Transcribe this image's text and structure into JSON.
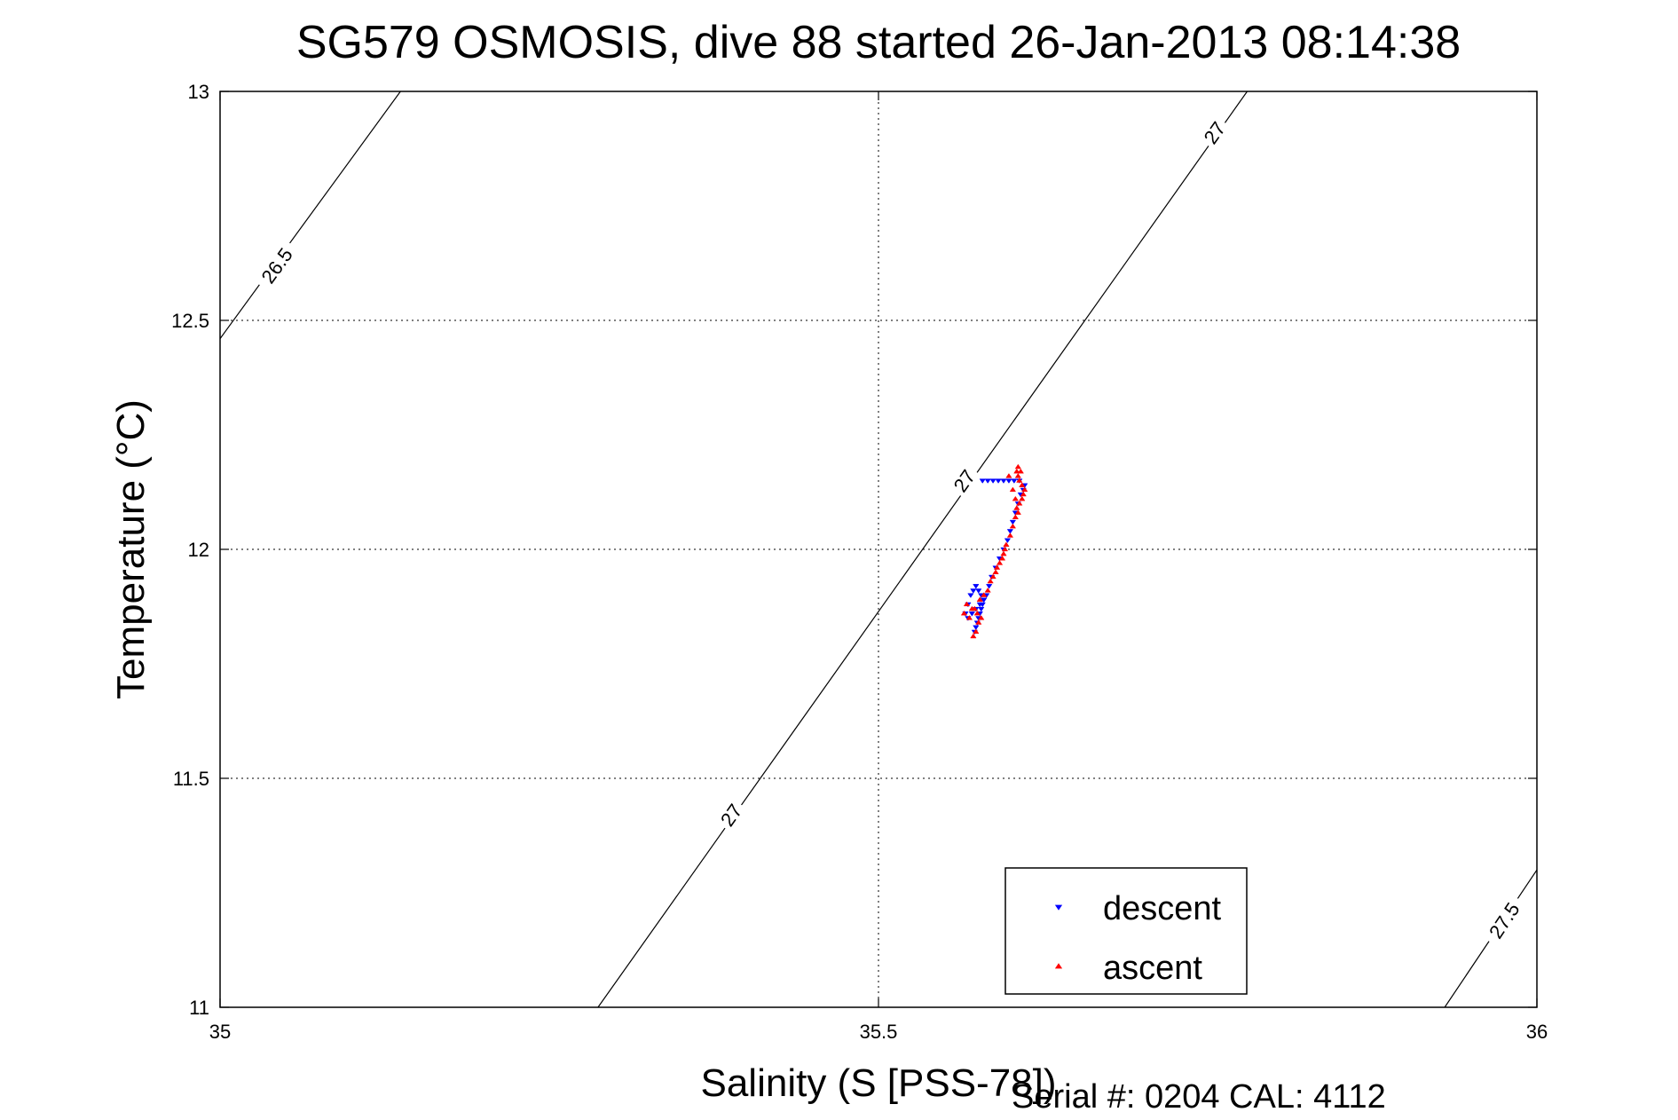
{
  "chart_data": {
    "type": "scatter",
    "title": "SG579 OSMOSIS, dive 88 started 26-Jan-2013 08:14:38",
    "xlabel": "Salinity (S [PSS-78])",
    "ylabel": "Temperature (°C)",
    "xlim": [
      35,
      36
    ],
    "ylim": [
      11,
      13
    ],
    "xticks": [
      35,
      35.5,
      36
    ],
    "xtick_labels": [
      "35",
      "35.5",
      "36"
    ],
    "yticks": [
      11,
      11.5,
      12,
      12.5,
      13
    ],
    "ytick_labels": [
      "11",
      "11.5",
      "12",
      "12.5",
      "13"
    ],
    "grid": true,
    "legend_position": "bottom-right",
    "footnote": "Serial #: 0204  CAL: 4112",
    "contours": [
      {
        "label": "26.5",
        "points": [
          [
            35.0,
            12.46
          ],
          [
            35.137,
            13.0
          ]
        ]
      },
      {
        "label": "27",
        "points": [
          [
            35.287,
            11.0
          ],
          [
            35.78,
            13.0
          ]
        ]
      },
      {
        "label": "27.5",
        "points": [
          [
            35.93,
            11.0
          ],
          [
            36.0,
            11.3
          ]
        ]
      }
    ],
    "contour_labels": [
      {
        "text": "26.5",
        "x": 35.043,
        "y": 12.62
      },
      {
        "text": "27",
        "x": 35.755,
        "y": 12.91
      },
      {
        "text": "27",
        "x": 35.565,
        "y": 12.15
      },
      {
        "text": "27",
        "x": 35.388,
        "y": 11.42
      },
      {
        "text": "27.5",
        "x": 35.975,
        "y": 11.19
      }
    ],
    "series": [
      {
        "name": "descent",
        "color": "#0000ff",
        "marker": "triangle-down",
        "points": [
          [
            35.573,
            11.82
          ],
          [
            35.574,
            11.83
          ],
          [
            35.575,
            11.84
          ],
          [
            35.576,
            11.85
          ],
          [
            35.577,
            11.86
          ],
          [
            35.578,
            11.87
          ],
          [
            35.579,
            11.88
          ],
          [
            35.58,
            11.89
          ],
          [
            35.578,
            11.9
          ],
          [
            35.576,
            11.91
          ],
          [
            35.574,
            11.92
          ],
          [
            35.572,
            11.91
          ],
          [
            35.57,
            11.9
          ],
          [
            35.568,
            11.88
          ],
          [
            35.566,
            11.86
          ],
          [
            35.568,
            11.85
          ],
          [
            35.571,
            11.86
          ],
          [
            35.574,
            11.87
          ],
          [
            35.577,
            11.88
          ],
          [
            35.58,
            11.89
          ],
          [
            35.582,
            11.9
          ],
          [
            35.584,
            11.92
          ],
          [
            35.586,
            11.94
          ],
          [
            35.589,
            11.96
          ],
          [
            35.592,
            11.98
          ],
          [
            35.595,
            12.0
          ],
          [
            35.598,
            12.02
          ],
          [
            35.6,
            12.04
          ],
          [
            35.602,
            12.06
          ],
          [
            35.604,
            12.08
          ],
          [
            35.606,
            12.1
          ],
          [
            35.608,
            12.12
          ],
          [
            35.61,
            12.13
          ],
          [
            35.611,
            12.14
          ],
          [
            35.607,
            12.15
          ],
          [
            35.603,
            12.15
          ],
          [
            35.599,
            12.15
          ],
          [
            35.595,
            12.15
          ],
          [
            35.591,
            12.15
          ],
          [
            35.587,
            12.15
          ],
          [
            35.583,
            12.15
          ],
          [
            35.579,
            12.15
          ]
        ]
      },
      {
        "name": "ascent",
        "color": "#ff0000",
        "marker": "triangle-up",
        "points": [
          [
            35.572,
            11.81
          ],
          [
            35.574,
            11.82
          ],
          [
            35.576,
            11.84
          ],
          [
            35.578,
            11.85
          ],
          [
            35.575,
            11.86
          ],
          [
            35.571,
            11.87
          ],
          [
            35.567,
            11.88
          ],
          [
            35.565,
            11.86
          ],
          [
            35.569,
            11.85
          ],
          [
            35.573,
            11.87
          ],
          [
            35.577,
            11.89
          ],
          [
            35.58,
            11.9
          ],
          [
            35.583,
            11.91
          ],
          [
            35.585,
            11.93
          ],
          [
            35.587,
            11.94
          ],
          [
            35.589,
            11.95
          ],
          [
            35.59,
            11.96
          ],
          [
            35.592,
            11.97
          ],
          [
            35.594,
            11.98
          ],
          [
            35.595,
            11.99
          ],
          [
            35.596,
            12.0
          ],
          [
            35.597,
            12.01
          ],
          [
            35.6,
            12.03
          ],
          [
            35.602,
            12.05
          ],
          [
            35.604,
            12.07
          ],
          [
            35.606,
            12.08
          ],
          [
            35.605,
            12.09
          ],
          [
            35.607,
            12.1
          ],
          [
            35.609,
            12.11
          ],
          [
            35.61,
            12.12
          ],
          [
            35.611,
            12.13
          ],
          [
            35.609,
            12.14
          ],
          [
            35.607,
            12.15
          ],
          [
            35.606,
            12.16
          ],
          [
            35.605,
            12.17
          ],
          [
            35.606,
            12.18
          ],
          [
            35.608,
            12.17
          ],
          [
            35.599,
            12.16
          ],
          [
            35.602,
            12.13
          ],
          [
            35.604,
            12.11
          ]
        ]
      }
    ]
  }
}
